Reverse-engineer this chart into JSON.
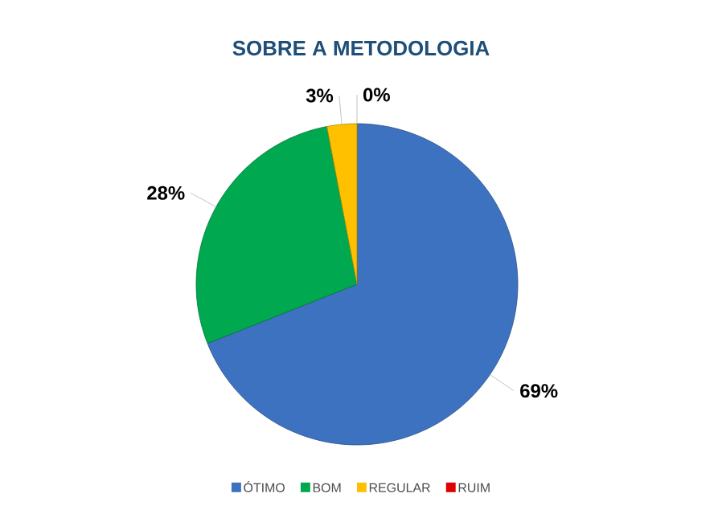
{
  "chart_data": {
    "type": "pie",
    "title": "SOBRE A METODOLOGIA",
    "categories": [
      "ÓTIMO",
      "BOM",
      "REGULAR",
      "RUIM"
    ],
    "values": [
      69,
      28,
      3,
      0
    ],
    "colors": [
      "#3d72c0",
      "#00a84f",
      "#ffc000",
      "#e00000"
    ],
    "value_labels": [
      "69%",
      "28%",
      "3%",
      "0%"
    ],
    "legend": "bottom"
  }
}
